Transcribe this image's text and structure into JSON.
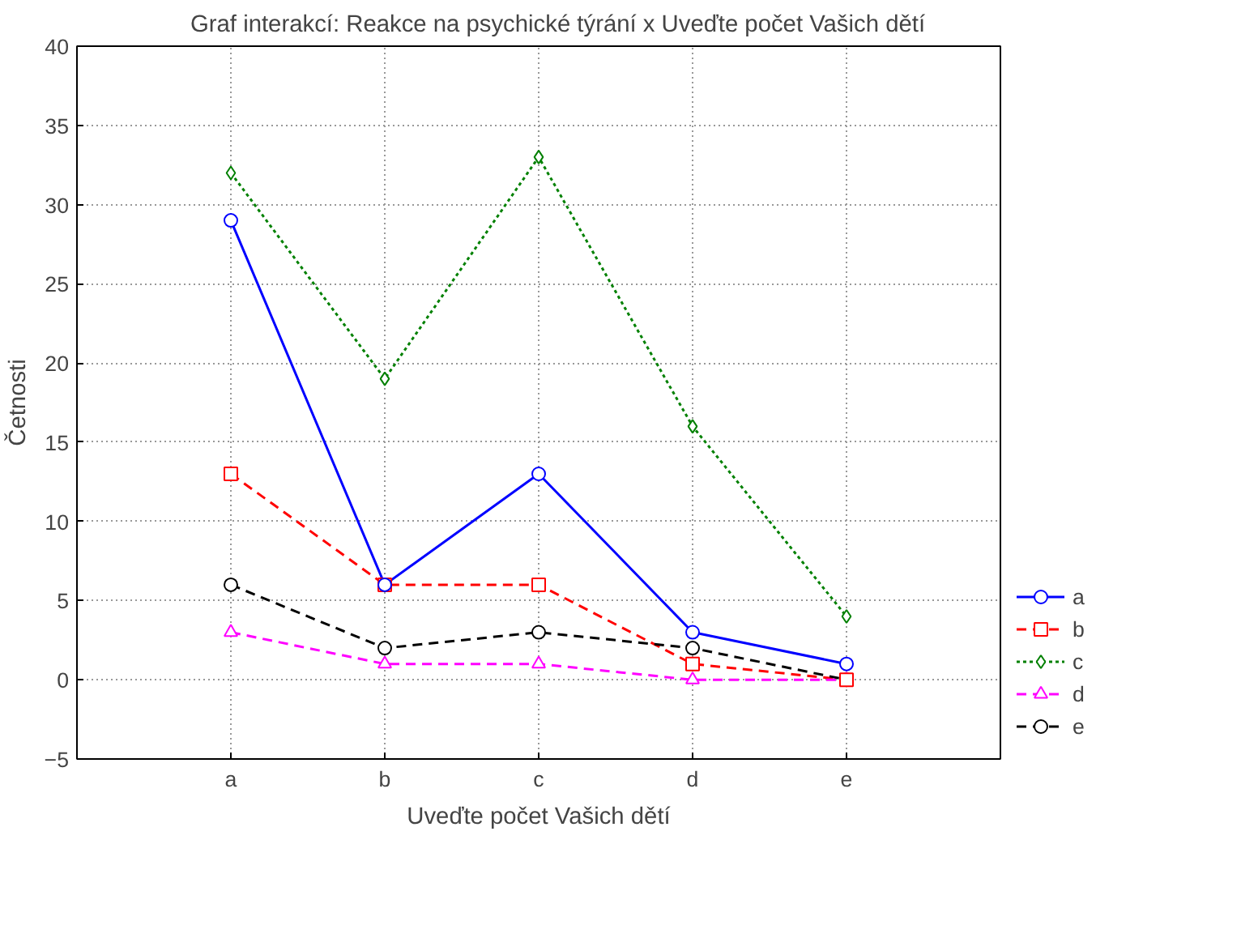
{
  "chart_data": {
    "type": "line",
    "title": "Graf interakcí: Reakce na psychické týrání x Uveďte počet Vašich dětí",
    "xlabel": "Uveďte počet Vašich dětí",
    "ylabel": "Četnosti",
    "categories": [
      "a",
      "b",
      "c",
      "d",
      "e"
    ],
    "series": [
      {
        "name": "a",
        "color": "#0000ff",
        "values": [
          29,
          6,
          13,
          3,
          1
        ],
        "marker": "circle",
        "line_style": "solid"
      },
      {
        "name": "b",
        "color": "#ff0000",
        "values": [
          13,
          6,
          6,
          1,
          0
        ],
        "marker": "square",
        "line_style": "dashed"
      },
      {
        "name": "c",
        "color": "#008000",
        "values": [
          32,
          19,
          33,
          16,
          4
        ],
        "marker": "diamond",
        "line_style": "dotted"
      },
      {
        "name": "d",
        "color": "#ff00ff",
        "values": [
          3,
          1,
          1,
          0,
          0
        ],
        "marker": "triangle",
        "line_style": "dashed"
      },
      {
        "name": "e",
        "color": "#000000",
        "values": [
          6,
          2,
          3,
          2,
          0
        ],
        "marker": "circle",
        "line_style": "dashed"
      }
    ],
    "ylim": [
      -5,
      40
    ],
    "yticks": [
      -5,
      0,
      5,
      10,
      15,
      20,
      25,
      30,
      35,
      40
    ],
    "grid": true,
    "legend": "bottom right"
  }
}
